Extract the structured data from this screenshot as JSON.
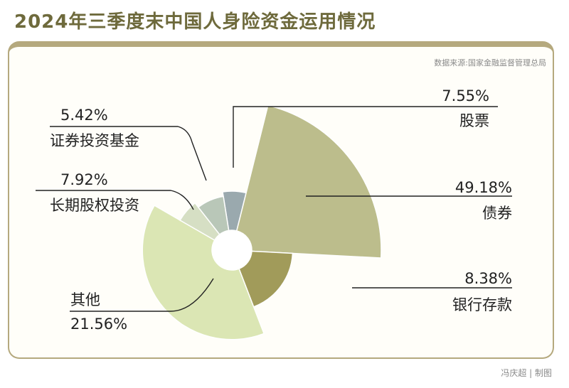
{
  "header": {
    "title": "2024年三季度末中国人身险资金运用情况",
    "source": "数据来源:国家金融监督管理总局",
    "credit": "冯庆超 | 制图"
  },
  "chart_data": {
    "type": "pie",
    "title": "2024年三季度末中国人身险资金运用情况",
    "slices": [
      {
        "name": "股票",
        "value": 7.55,
        "pct_label": "7.55%",
        "color": "#9aa9ae"
      },
      {
        "name": "债券",
        "value": 49.18,
        "pct_label": "49.18%",
        "color": "#bcbd8c"
      },
      {
        "name": "银行存款",
        "value": 8.38,
        "pct_label": "8.38%",
        "color": "#a19b5a"
      },
      {
        "name": "其他",
        "value": 21.56,
        "pct_label": "21.56%",
        "color": "#dbe6b4"
      },
      {
        "name": "长期股权投资",
        "value": 7.92,
        "pct_label": "7.92%",
        "color": "#d6dfc4"
      },
      {
        "name": "证券投资基金",
        "value": 5.42,
        "pct_label": "5.42%",
        "color": "#b9c7b8"
      }
    ]
  }
}
